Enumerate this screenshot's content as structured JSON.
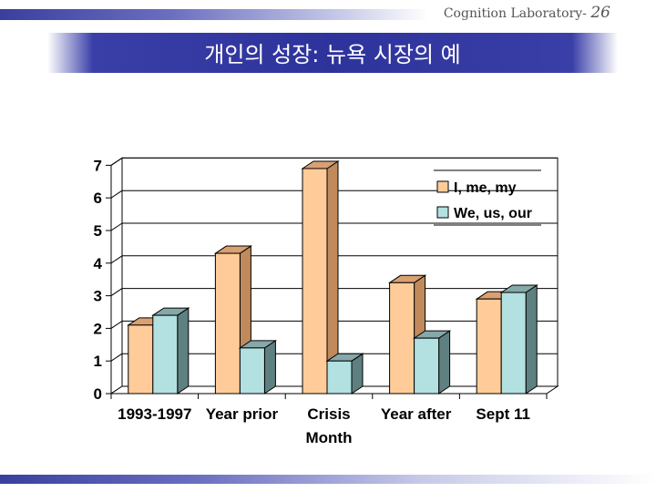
{
  "header": {
    "lab": "Cognition Laboratory-",
    "page": "26"
  },
  "title": "개인의 성장: 뉴욕 시장의 예",
  "colors": {
    "series1_front": "#ffcc99",
    "series1_side": "#c08a5c",
    "series1_top": "#d9a072",
    "series2_front": "#b3e0e0",
    "series2_side": "#5f8080",
    "series2_top": "#85a8a8",
    "wall_side": "#c0c0c0"
  },
  "chart_data": {
    "type": "bar",
    "categories": [
      [
        "1993-1997"
      ],
      [
        "Year prior"
      ],
      [
        "Crisis",
        "Month"
      ],
      [
        "Year after"
      ],
      [
        "Sept 11"
      ]
    ],
    "series": [
      {
        "name": "I, me, my",
        "values": [
          2.1,
          4.3,
          6.9,
          3.4,
          2.9
        ]
      },
      {
        "name": "We, us, our",
        "values": [
          2.4,
          1.4,
          1.0,
          1.7,
          3.1
        ]
      }
    ],
    "yticks": [
      "0",
      "1",
      "2",
      "3",
      "4",
      "5",
      "6",
      "7"
    ],
    "ylim": [
      0,
      7
    ],
    "grid": true,
    "legend_position": "top-right",
    "title": "",
    "xlabel": "",
    "ylabel": ""
  }
}
